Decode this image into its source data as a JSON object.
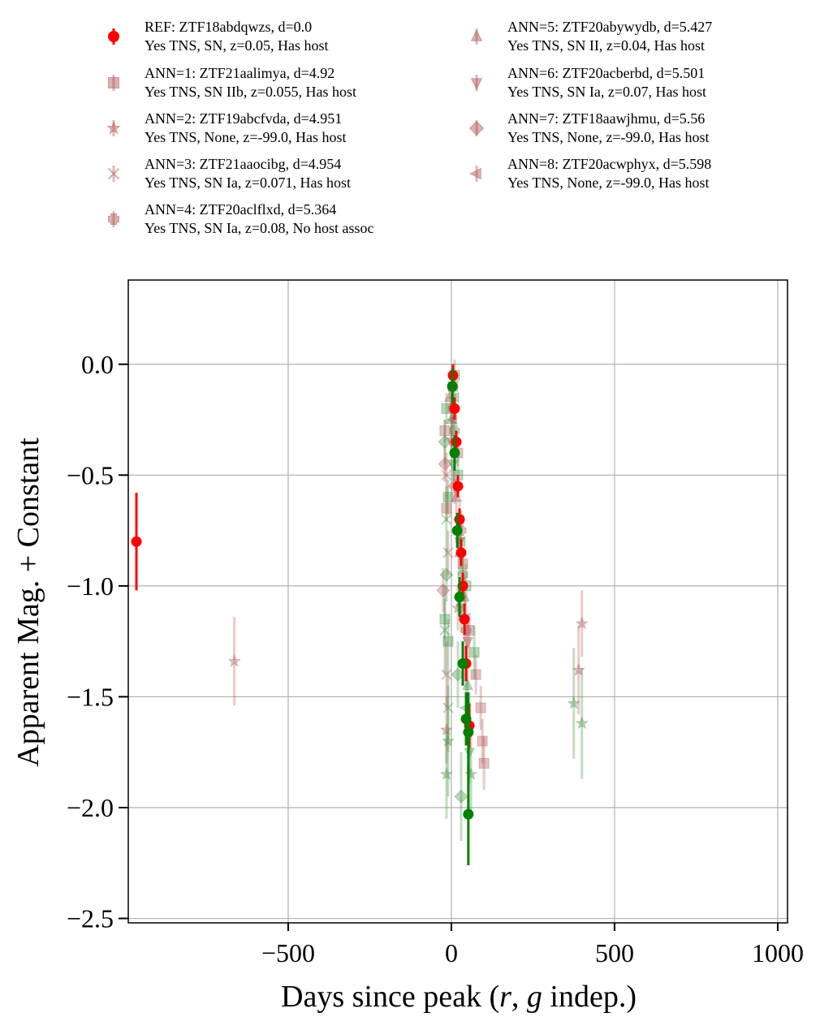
{
  "chart_data": {
    "type": "scatter",
    "xlabel": "Days since peak ($r$, $g$ indep.)",
    "xlabel_display": {
      "prefix": "Days since peak (",
      "r": "r",
      "sep": ", ",
      "g": "g",
      "suffix": " indep.)"
    },
    "ylabel": "Apparent Mag. + Constant",
    "xlim": [
      -990,
      1030
    ],
    "ylim": [
      -2.52,
      0.38
    ],
    "x_ticks": [
      -500,
      0,
      500,
      1000
    ],
    "x_tick_labels": [
      "−500",
      "0",
      "500",
      "1000"
    ],
    "y_ticks": [
      0.0,
      -0.5,
      -1.0,
      -1.5,
      -2.0,
      -2.5
    ],
    "y_tick_labels": [
      "0.0",
      "−0.5",
      "−1.0",
      "−1.5",
      "−2.0",
      "−2.5"
    ],
    "grid": true,
    "legend_position": "top, two columns",
    "colors": {
      "r_band": "#ff0000",
      "g_band": "#008000",
      "ann_r": "#b05050",
      "ann_g": "#3a8a3a"
    },
    "series": [
      {
        "name": "REF: ZTF18abdqwzs, d=0.0",
        "line2": "Yes TNS, SN, z=0.05, Has host",
        "marker": "circle",
        "is_ref": true,
        "points_r": [
          [
            -965,
            -0.8,
            0.22
          ],
          [
            5,
            -0.05,
            0.05
          ],
          [
            10,
            -0.2,
            0.05
          ],
          [
            15,
            -0.35,
            0.05
          ],
          [
            20,
            -0.55,
            0.05
          ],
          [
            25,
            -0.7,
            0.05
          ],
          [
            30,
            -0.85,
            0.06
          ],
          [
            35,
            -1.0,
            0.06
          ],
          [
            40,
            -1.15,
            0.07
          ],
          [
            45,
            -1.35,
            0.08
          ],
          [
            55,
            -1.63,
            0.1
          ]
        ],
        "points_g": [
          [
            3,
            -0.1,
            0.08
          ],
          [
            10,
            -0.4,
            0.08
          ],
          [
            18,
            -0.75,
            0.08
          ],
          [
            25,
            -1.05,
            0.09
          ],
          [
            35,
            -1.35,
            0.1
          ],
          [
            45,
            -1.6,
            0.12
          ],
          [
            52,
            -1.66,
            0.18
          ],
          [
            52,
            -2.03,
            0.23
          ]
        ]
      },
      {
        "name": "ANN=1: ZTF21aalimya, d=4.92",
        "line2": "Yes TNS, SN IIb, z=0.055, Has host",
        "marker": "square",
        "points_r": [
          [
            -20,
            -0.3,
            0.05
          ],
          [
            -15,
            -0.65,
            0.06
          ],
          [
            5,
            -0.1,
            0.05
          ],
          [
            20,
            -0.4,
            0.06
          ],
          [
            35,
            -0.9,
            0.07
          ],
          [
            55,
            -1.2,
            0.08
          ],
          [
            75,
            -1.4,
            0.09
          ],
          [
            90,
            -1.55,
            0.1
          ],
          [
            95,
            -1.7,
            0.1
          ],
          [
            100,
            -1.8,
            0.12
          ]
        ],
        "points_g": [
          [
            -15,
            -0.2,
            0.07
          ],
          [
            -10,
            -0.6,
            0.08
          ],
          [
            10,
            -0.05,
            0.07
          ],
          [
            20,
            -0.5,
            0.08
          ],
          [
            -20,
            -1.15,
            0.09
          ],
          [
            -10,
            -1.25,
            0.1
          ],
          [
            45,
            -1.0,
            0.1
          ],
          [
            70,
            -1.3,
            0.12
          ]
        ]
      },
      {
        "name": "ANN=2: ZTF19abcfvda, d=4.951",
        "line2": "Yes TNS, None, z=-99.0, Has host",
        "marker": "star",
        "points_r": [
          [
            -665,
            -1.34,
            0.2
          ],
          [
            390,
            -1.38,
            0.2
          ],
          [
            400,
            -1.17,
            0.15
          ],
          [
            -15,
            -1.65,
            0.15
          ],
          [
            20,
            -1.1,
            0.1
          ]
        ],
        "points_g": [
          [
            375,
            -1.53,
            0.25
          ],
          [
            400,
            -1.62,
            0.25
          ],
          [
            -10,
            -1.7,
            0.25
          ],
          [
            -15,
            -1.85,
            0.2
          ],
          [
            60,
            -1.85,
            0.2
          ]
        ]
      },
      {
        "name": "ANN=3: ZTF21aaocibg, d=4.954",
        "line2": "Yes TNS, SN Ia, z=0.071, Has host",
        "marker": "x",
        "points_r": [
          [
            -15,
            -0.5,
            0.1
          ],
          [
            -10,
            -0.85,
            0.1
          ],
          [
            -15,
            -1.4,
            0.15
          ]
        ],
        "points_g": [
          [
            -15,
            -0.7,
            0.15
          ],
          [
            -20,
            -1.2,
            0.2
          ],
          [
            -10,
            -1.55,
            0.2
          ]
        ]
      },
      {
        "name": "ANN=4: ZTF20aclflxd, d=5.364",
        "line2": "Yes TNS, SN Ia, z=0.08, No host assoc",
        "marker": "plus",
        "points_r": [
          [
            5,
            -0.2,
            0.08
          ],
          [
            30,
            -0.75,
            0.09
          ],
          [
            45,
            -1.2,
            0.1
          ]
        ],
        "points_g": [
          [
            10,
            -0.3,
            0.1
          ],
          [
            35,
            -0.95,
            0.12
          ]
        ]
      },
      {
        "name": "ANN=5: ZTF20abywydb, d=5.427",
        "line2": "Yes TNS, SN II, z=0.04, Has host",
        "marker": "triangle-up",
        "points_r": [
          [
            -5,
            -0.15,
            0.07
          ],
          [
            15,
            -0.6,
            0.08
          ],
          [
            40,
            -1.05,
            0.1
          ]
        ],
        "points_g": [
          [
            0,
            -0.25,
            0.08
          ],
          [
            25,
            -0.85,
            0.1
          ],
          [
            50,
            -1.45,
            0.12
          ]
        ]
      },
      {
        "name": "ANN=6: ZTF20acberbd, d=5.501",
        "line2": "Yes TNS, SN Ia, z=0.07, Has host",
        "marker": "triangle-down",
        "points_r": [
          [
            0,
            -0.35,
            0.07
          ],
          [
            25,
            -0.8,
            0.08
          ],
          [
            50,
            -1.25,
            0.1
          ]
        ],
        "points_g": [
          [
            5,
            -0.45,
            0.09
          ],
          [
            30,
            -1.1,
            0.11
          ],
          [
            55,
            -1.75,
            0.14
          ]
        ]
      },
      {
        "name": "ANN=7: ZTF18aawjhmu, d=5.56",
        "line2": "Yes TNS, None, z=-99.0, Has host",
        "marker": "diamond",
        "points_r": [
          [
            -20,
            -0.45,
            0.08
          ],
          [
            -25,
            -1.02,
            0.1
          ],
          [
            10,
            -0.55,
            0.08
          ]
        ],
        "points_g": [
          [
            -20,
            -0.35,
            0.1
          ],
          [
            -15,
            -0.95,
            0.12
          ],
          [
            20,
            -1.4,
            0.15
          ],
          [
            30,
            -1.95,
            0.2
          ]
        ]
      },
      {
        "name": "ANN=8: ZTF20acwphyx, d=5.598",
        "line2": "Yes TNS, None, z=-99.0, Has host",
        "marker": "triangle-left",
        "points_r": [
          [
            5,
            -0.25,
            0.08
          ],
          [
            25,
            -0.7,
            0.09
          ],
          [
            40,
            -1.15,
            0.1
          ]
        ],
        "points_g": [
          [
            10,
            -0.15,
            0.1
          ],
          [
            30,
            -0.8,
            0.12
          ],
          [
            45,
            -1.55,
            0.15
          ]
        ]
      }
    ]
  }
}
